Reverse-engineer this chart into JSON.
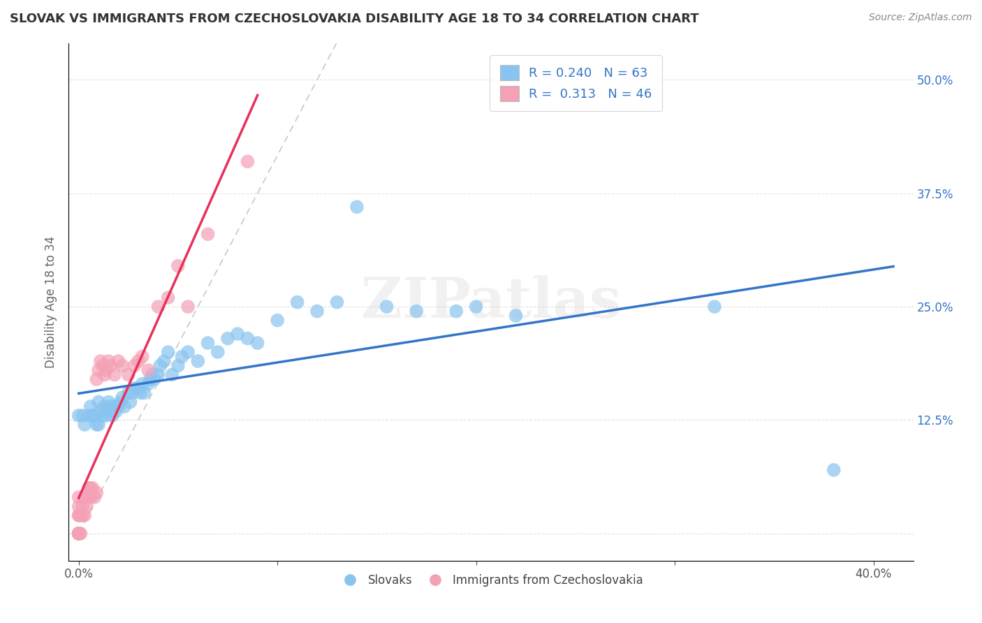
{
  "title": "SLOVAK VS IMMIGRANTS FROM CZECHOSLOVAKIA DISABILITY AGE 18 TO 34 CORRELATION CHART",
  "source": "Source: ZipAtlas.com",
  "ylabel_text": "Disability Age 18 to 34",
  "x_ticks": [
    0.0,
    0.1,
    0.2,
    0.3,
    0.4
  ],
  "y_ticks": [
    0.0,
    0.125,
    0.25,
    0.375,
    0.5
  ],
  "xlim": [
    -0.005,
    0.42
  ],
  "ylim": [
    -0.03,
    0.54
  ],
  "blue_R": 0.24,
  "blue_N": 63,
  "pink_R": 0.313,
  "pink_N": 46,
  "blue_color": "#89C4F0",
  "pink_color": "#F4A0B5",
  "blue_line_color": "#3375C8",
  "pink_line_color": "#E8305A",
  "ref_line_color": "#C8C8C8",
  "legend_label_blue": "Slovaks",
  "legend_label_pink": "Immigrants from Czechoslovakia",
  "blue_scatter_x": [
    0.0,
    0.002,
    0.003,
    0.005,
    0.006,
    0.007,
    0.008,
    0.009,
    0.01,
    0.01,
    0.011,
    0.012,
    0.013,
    0.014,
    0.015,
    0.015,
    0.016,
    0.017,
    0.018,
    0.019,
    0.02,
    0.021,
    0.022,
    0.023,
    0.025,
    0.026,
    0.027,
    0.028,
    0.03,
    0.031,
    0.032,
    0.033,
    0.035,
    0.036,
    0.037,
    0.038,
    0.04,
    0.041,
    0.043,
    0.045,
    0.047,
    0.05,
    0.052,
    0.055,
    0.06,
    0.065,
    0.07,
    0.075,
    0.08,
    0.085,
    0.09,
    0.1,
    0.11,
    0.12,
    0.13,
    0.14,
    0.155,
    0.17,
    0.19,
    0.2,
    0.22,
    0.32,
    0.38
  ],
  "blue_scatter_y": [
    0.13,
    0.13,
    0.12,
    0.13,
    0.14,
    0.13,
    0.13,
    0.12,
    0.12,
    0.145,
    0.135,
    0.13,
    0.14,
    0.13,
    0.135,
    0.145,
    0.14,
    0.13,
    0.14,
    0.135,
    0.14,
    0.145,
    0.15,
    0.14,
    0.155,
    0.145,
    0.155,
    0.16,
    0.16,
    0.155,
    0.165,
    0.155,
    0.165,
    0.17,
    0.175,
    0.17,
    0.175,
    0.185,
    0.19,
    0.2,
    0.175,
    0.185,
    0.195,
    0.2,
    0.19,
    0.21,
    0.2,
    0.215,
    0.22,
    0.215,
    0.21,
    0.235,
    0.255,
    0.245,
    0.255,
    0.36,
    0.25,
    0.245,
    0.245,
    0.25,
    0.24,
    0.25,
    0.07
  ],
  "pink_scatter_x": [
    0.0,
    0.0,
    0.0,
    0.0,
    0.0,
    0.0,
    0.0,
    0.0,
    0.0,
    0.0,
    0.001,
    0.001,
    0.002,
    0.002,
    0.003,
    0.003,
    0.004,
    0.005,
    0.005,
    0.006,
    0.006,
    0.007,
    0.008,
    0.009,
    0.009,
    0.01,
    0.011,
    0.012,
    0.013,
    0.014,
    0.015,
    0.016,
    0.018,
    0.02,
    0.022,
    0.025,
    0.028,
    0.03,
    0.032,
    0.035,
    0.04,
    0.045,
    0.05,
    0.055,
    0.065,
    0.085
  ],
  "pink_scatter_y": [
    0.0,
    0.0,
    0.0,
    0.0,
    0.0,
    0.0,
    0.02,
    0.02,
    0.03,
    0.04,
    0.0,
    0.02,
    0.02,
    0.03,
    0.02,
    0.04,
    0.03,
    0.04,
    0.05,
    0.04,
    0.05,
    0.05,
    0.04,
    0.045,
    0.17,
    0.18,
    0.19,
    0.185,
    0.175,
    0.18,
    0.19,
    0.185,
    0.175,
    0.19,
    0.185,
    0.175,
    0.185,
    0.19,
    0.195,
    0.18,
    0.25,
    0.26,
    0.295,
    0.25,
    0.33,
    0.41
  ],
  "watermark_text": "ZIPatlas",
  "background_color": "#FFFFFF",
  "grid_color": "#E0E0E0"
}
